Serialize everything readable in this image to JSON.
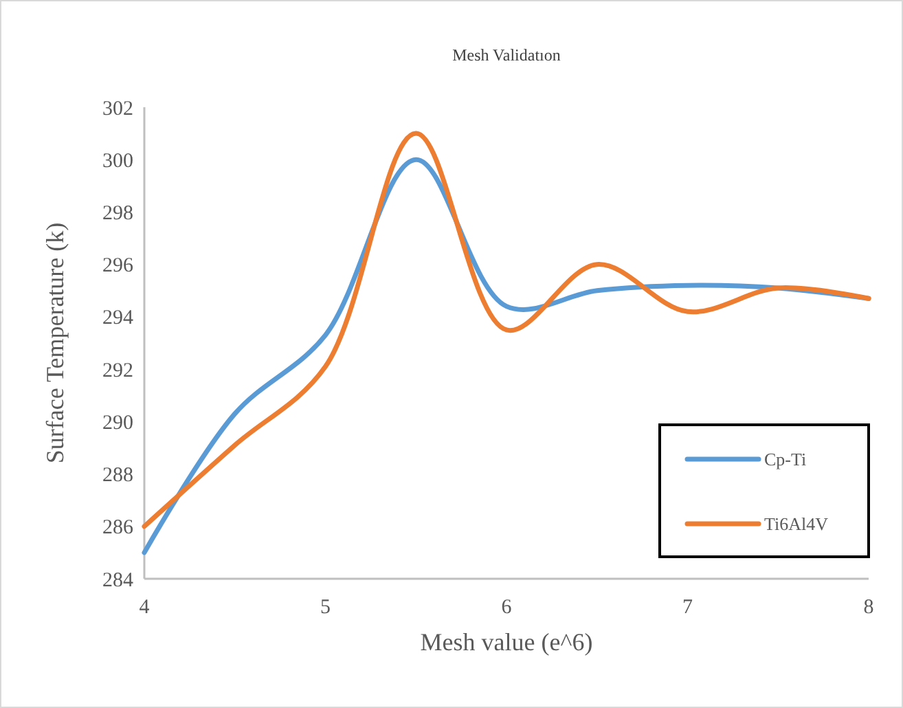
{
  "chart_data": {
    "type": "line",
    "title": "Mesh Validatıon",
    "xlabel": "Mesh value (e^6)",
    "ylabel": "Surface Temperature (k)",
    "x": [
      4,
      4.5,
      5,
      5.5,
      6,
      6.5,
      7,
      7.5,
      8
    ],
    "series": [
      {
        "name": "Cp-Ti",
        "color": "#5b9bd5",
        "values": [
          285,
          290.3,
          293.3,
          300,
          294.4,
          295,
          295.2,
          295.1,
          294.7
        ]
      },
      {
        "name": "Ti6Al4V",
        "color": "#ed7d31",
        "values": [
          286,
          289.1,
          292.1,
          301,
          293.5,
          296,
          294.2,
          295.1,
          294.7
        ]
      }
    ],
    "xlim": [
      4,
      8
    ],
    "xticks": [
      4,
      5,
      6,
      7,
      8
    ],
    "ylim": [
      284,
      302
    ],
    "yticks": [
      284,
      286,
      288,
      290,
      292,
      294,
      296,
      298,
      300,
      302
    ],
    "grid": false,
    "legend": "bottom right",
    "marker": "none",
    "line_style": "solid"
  }
}
